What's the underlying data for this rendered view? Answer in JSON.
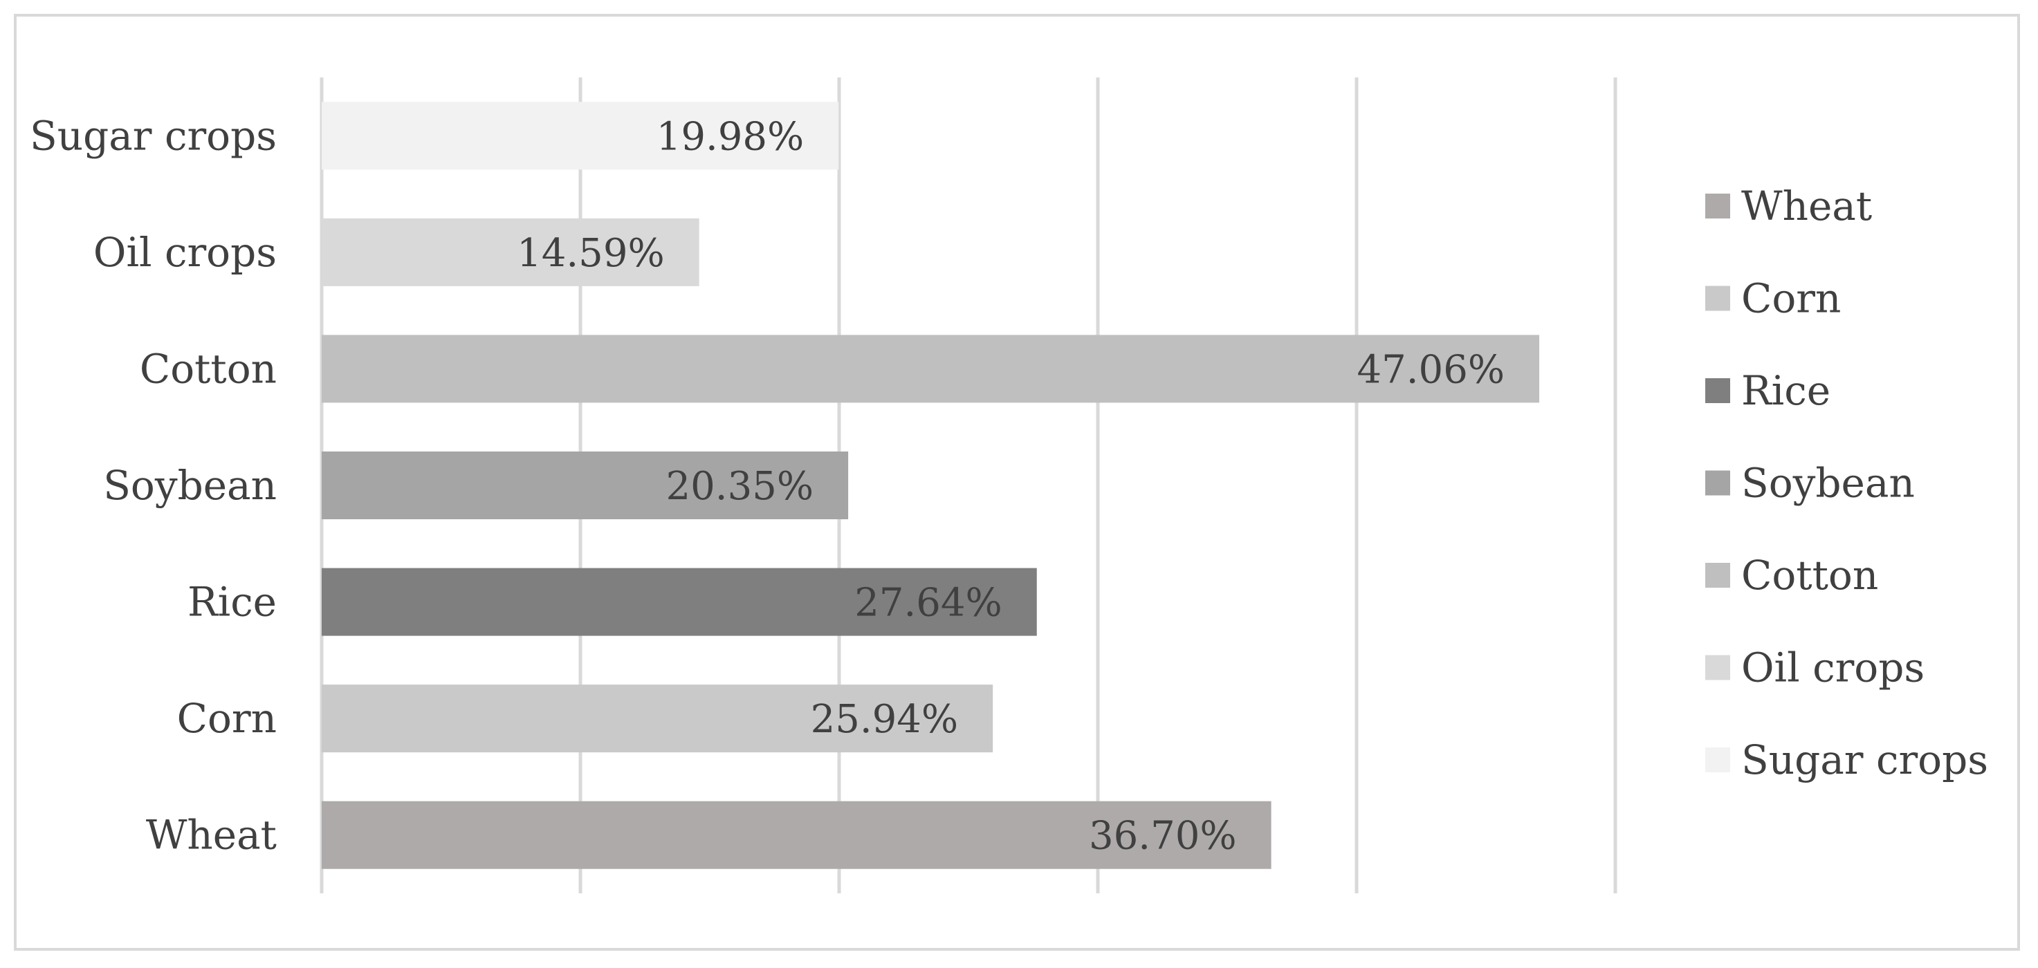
{
  "chart_data": {
    "type": "bar",
    "orientation": "horizontal",
    "categories": [
      "Wheat",
      "Corn",
      "Rice",
      "Soybean",
      "Cotton",
      "Oil crops",
      "Sugar crops"
    ],
    "values": [
      36.7,
      25.94,
      27.64,
      20.35,
      47.06,
      14.59,
      19.98
    ],
    "data_labels": [
      "36.70%",
      "25.94%",
      "27.64%",
      "20.35%",
      "47.06%",
      "14.59%",
      "19.98%"
    ],
    "colors": [
      "#aeaaaa",
      "#c9c9c9",
      "#7f7f7f",
      "#a5a5a5",
      "#bfbfbf",
      "#d9d9d9",
      "#f2f2f2"
    ],
    "xlim": [
      0,
      50
    ],
    "grid": true,
    "legend": {
      "position": "right",
      "entries": [
        "Wheat",
        "Corn",
        "Rice",
        "Soybean",
        "Cotton",
        "Oil crops",
        "Sugar crops"
      ]
    },
    "title": "",
    "xlabel": "",
    "ylabel": ""
  }
}
